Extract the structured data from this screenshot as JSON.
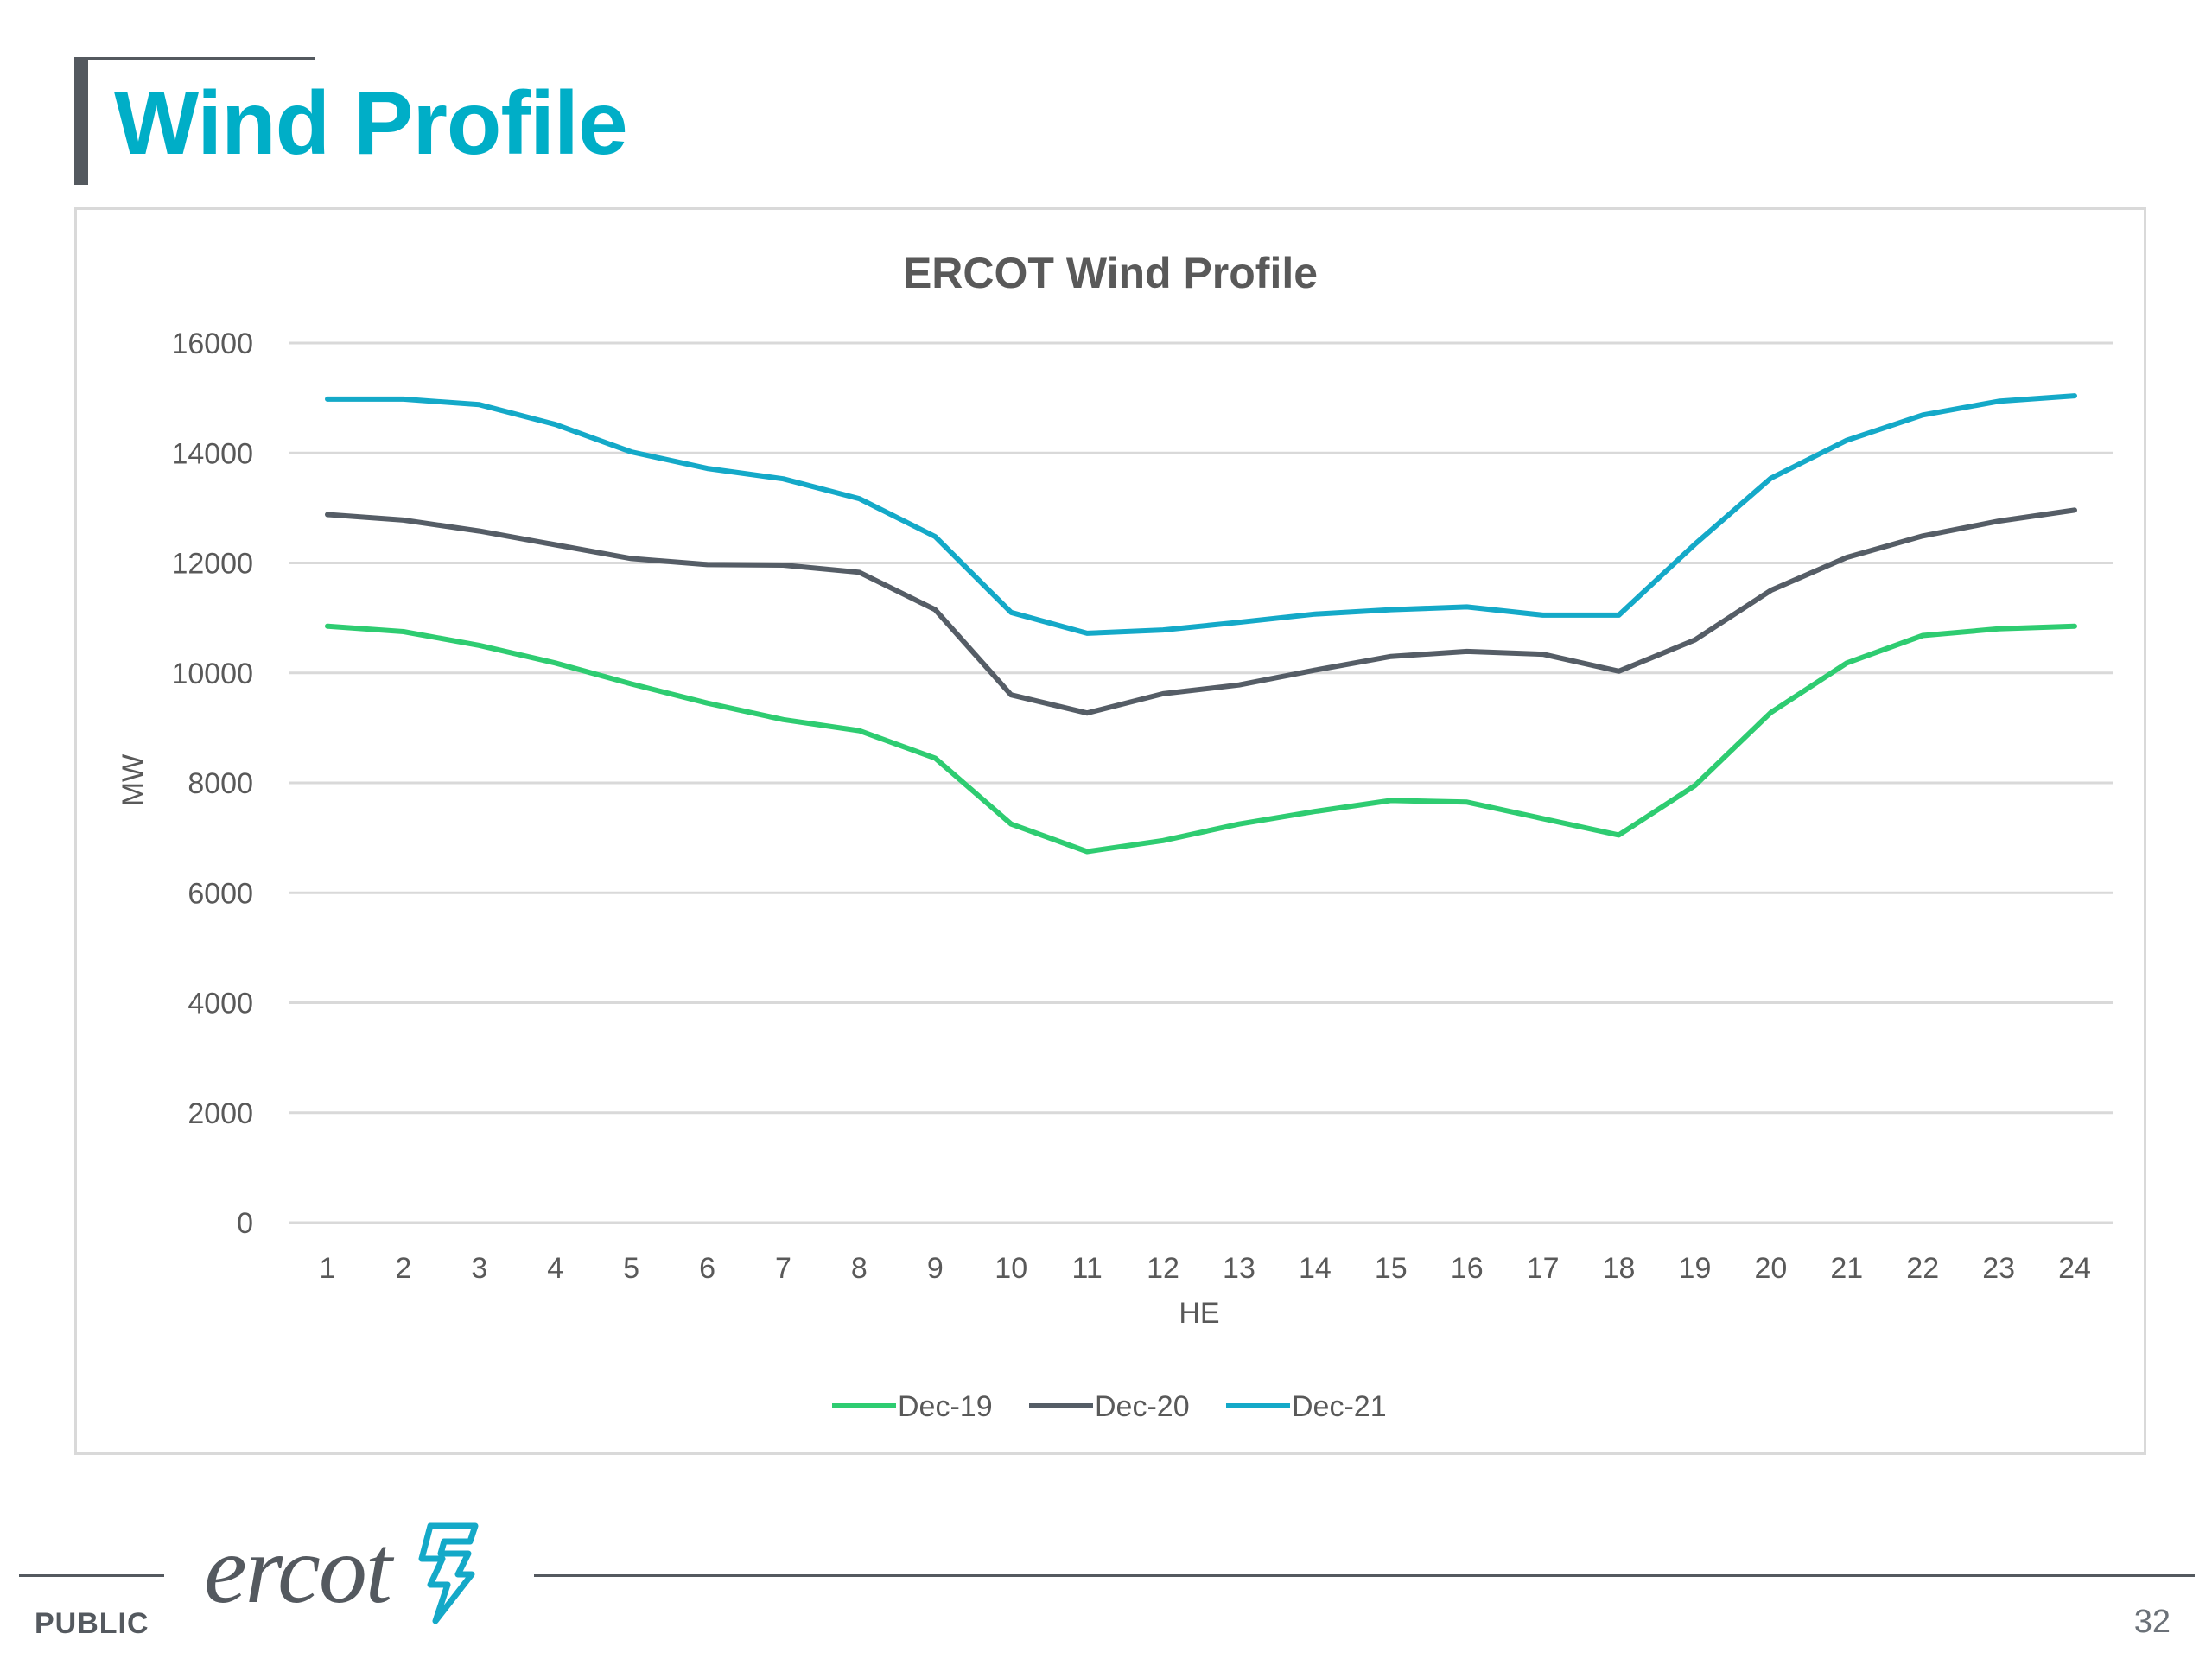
{
  "slide": {
    "title": "Wind Profile",
    "footer_label": "PUBLIC",
    "page_number": "32",
    "logo_text": "ercot"
  },
  "colors": {
    "title": "#00aec7",
    "dec19": "#2ecc71",
    "dec20": "#555d66",
    "dec21": "#14a9c8",
    "grid": "#d9d9d9",
    "text": "#595959"
  },
  "chart_data": {
    "type": "line",
    "title": "ERCOT Wind Profile",
    "xlabel": "HE",
    "ylabel": "MW",
    "ylim": [
      0,
      16000
    ],
    "yticks": [
      "0",
      "2000",
      "4000",
      "6000",
      "8000",
      "10000",
      "12000",
      "14000",
      "16000"
    ],
    "grid": true,
    "legend_position": "bottom",
    "categories": [
      "1",
      "2",
      "3",
      "4",
      "5",
      "6",
      "7",
      "8",
      "9",
      "10",
      "11",
      "12",
      "13",
      "14",
      "15",
      "16",
      "17",
      "18",
      "19",
      "20",
      "21",
      "22",
      "23",
      "24"
    ],
    "series": [
      {
        "name": "Dec-19",
        "color": "#2ecc71",
        "values": [
          10850,
          10750,
          10500,
          10180,
          9800,
          9450,
          9150,
          8950,
          8450,
          7250,
          6750,
          6950,
          7250,
          7480,
          7680,
          7650,
          7350,
          7050,
          7950,
          9280,
          10180,
          10680,
          10800,
          10850
        ]
      },
      {
        "name": "Dec-20",
        "color": "#555d66",
        "values": [
          12880,
          12780,
          12580,
          12330,
          12080,
          11970,
          11960,
          11830,
          11150,
          9600,
          9270,
          9620,
          9780,
          10050,
          10300,
          10390,
          10340,
          10030,
          10600,
          11500,
          12100,
          12490,
          12760,
          12960
        ]
      },
      {
        "name": "Dec-21",
        "color": "#14a9c8",
        "values": [
          14980,
          14980,
          14880,
          14520,
          14020,
          13720,
          13530,
          13170,
          12480,
          11100,
          10720,
          10780,
          10920,
          11070,
          11150,
          11200,
          11050,
          11050,
          12340,
          13540,
          14230,
          14690,
          14940,
          15040
        ]
      }
    ]
  }
}
